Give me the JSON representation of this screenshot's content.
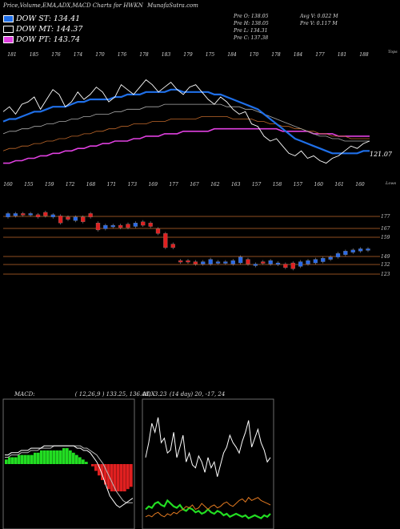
{
  "header": {
    "title": "Price,Volume,EMA,ADX,MACD Charts for HWKN",
    "site": "MunafaSutra.com"
  },
  "legend": [
    {
      "label": "DOW ST: 134.41",
      "color": "#1f6fe8"
    },
    {
      "label": "DOW MT: 144.37",
      "color": "#000000"
    },
    {
      "label": "DOW PT: 143.74",
      "color": "#e040e0"
    }
  ],
  "stats": {
    "o": "Pre   O: 138.05",
    "h": "Pre   H: 138.05",
    "l": "Pre   L: 134.31",
    "c": "Pre   C: 137.38",
    "avgv": "Avg V: 0.022  M",
    "prev": "Pre   V: 0.117 M"
  },
  "chart_data": [
    {
      "type": "line",
      "name": "price-ema-panel",
      "top_label": "Tops",
      "bottom_label": "Lows",
      "last_price_label": "121.07",
      "top_ticks": [
        "181",
        "185",
        "176",
        "174",
        "170",
        "176",
        "178",
        "183",
        "179",
        "175",
        "184",
        "170",
        "178",
        "184",
        "177",
        "181",
        "188"
      ],
      "bottom_ticks": [
        "160",
        "155",
        "159",
        "172",
        "168",
        "171",
        "173",
        "169",
        "177",
        "167",
        "162",
        "163",
        "157",
        "158",
        "157",
        "160",
        "161",
        "160"
      ],
      "series": [
        {
          "name": "price",
          "color": "#ffffff",
          "values": [
            168,
            170,
            167,
            171,
            172,
            174,
            169,
            173,
            177,
            175,
            170,
            172,
            176,
            173,
            175,
            178,
            176,
            172,
            174,
            179,
            177,
            175,
            178,
            181,
            179,
            176,
            178,
            180,
            177,
            175,
            178,
            179,
            176,
            173,
            171,
            174,
            172,
            169,
            167,
            168,
            163,
            162,
            158,
            156,
            157,
            154,
            151,
            150,
            152,
            149,
            150,
            148,
            147,
            149,
            150,
            152,
            154,
            153,
            155,
            156
          ]
        },
        {
          "name": "blue-ema",
          "color": "#1f6fe8",
          "values": [
            164,
            165,
            165,
            166,
            167,
            168,
            168,
            169,
            170,
            170,
            170,
            171,
            172,
            172,
            173,
            173,
            173,
            173,
            174,
            174,
            175,
            175,
            175,
            176,
            176,
            176,
            176,
            177,
            177,
            176,
            176,
            176,
            176,
            176,
            175,
            175,
            174,
            173,
            172,
            171,
            170,
            169,
            167,
            165,
            163,
            161,
            159,
            157,
            156,
            155,
            154,
            153,
            152,
            151,
            151,
            151,
            151,
            151,
            152,
            152
          ]
        },
        {
          "name": "ema-2",
          "color": "#aaaaaa",
          "values": [
            159,
            160,
            160,
            161,
            161,
            162,
            162,
            163,
            163,
            164,
            164,
            165,
            165,
            166,
            166,
            167,
            167,
            167,
            168,
            168,
            169,
            169,
            169,
            170,
            170,
            170,
            171,
            171,
            171,
            171,
            171,
            171,
            171,
            171,
            171,
            171,
            170,
            170,
            170,
            169,
            169,
            168,
            167,
            166,
            165,
            164,
            163,
            162,
            161,
            160,
            159,
            158,
            158,
            157,
            157,
            156,
            156,
            156,
            156,
            156
          ]
        },
        {
          "name": "ema-3",
          "color": "#c0682a",
          "values": [
            152,
            153,
            153,
            154,
            154,
            155,
            155,
            156,
            156,
            157,
            157,
            158,
            158,
            159,
            159,
            160,
            160,
            161,
            161,
            162,
            162,
            163,
            163,
            163,
            164,
            164,
            164,
            165,
            165,
            165,
            165,
            165,
            166,
            166,
            166,
            166,
            166,
            165,
            165,
            165,
            165,
            164,
            164,
            163,
            163,
            162,
            162,
            161,
            161,
            160,
            160,
            159,
            159,
            158,
            158,
            158,
            157,
            157,
            157,
            157
          ]
        },
        {
          "name": "ema-4",
          "color": "#e040e0",
          "values": [
            147,
            147,
            148,
            148,
            149,
            149,
            150,
            150,
            151,
            151,
            152,
            152,
            153,
            153,
            154,
            154,
            155,
            155,
            156,
            156,
            156,
            157,
            157,
            158,
            158,
            158,
            159,
            159,
            159,
            160,
            160,
            160,
            160,
            160,
            161,
            161,
            161,
            161,
            161,
            161,
            161,
            161,
            161,
            161,
            161,
            160,
            160,
            160,
            160,
            160,
            159,
            159,
            159,
            159,
            158,
            158,
            158,
            158,
            158,
            158
          ]
        }
      ]
    },
    {
      "type": "candlestick",
      "name": "price-bars-panel",
      "levels": [
        "177",
        "167",
        "159",
        "149",
        "132",
        "123"
      ],
      "candles": [
        {
          "o": 174,
          "c": 177,
          "up": true
        },
        {
          "o": 175,
          "c": 177,
          "up": true
        },
        {
          "o": 176,
          "c": 177,
          "up": false
        },
        {
          "o": 176,
          "c": 177,
          "up": true
        },
        {
          "o": 176,
          "c": 174,
          "up": false
        },
        {
          "o": 175,
          "c": 178,
          "up": false
        },
        {
          "o": 174,
          "c": 176,
          "up": true
        },
        {
          "o": 175,
          "c": 169,
          "up": false
        },
        {
          "o": 172,
          "c": 174,
          "up": false
        },
        {
          "o": 171,
          "c": 174,
          "up": true
        },
        {
          "o": 170,
          "c": 174,
          "up": false
        },
        {
          "o": 174,
          "c": 177,
          "up": false
        },
        {
          "o": 169,
          "c": 163,
          "up": false
        },
        {
          "o": 164,
          "c": 167,
          "up": true
        },
        {
          "o": 167,
          "c": 167,
          "up": true
        },
        {
          "o": 165,
          "c": 167,
          "up": false
        },
        {
          "o": 168,
          "c": 165,
          "up": false
        },
        {
          "o": 166,
          "c": 169,
          "up": true
        },
        {
          "o": 170,
          "c": 167,
          "up": false
        },
        {
          "o": 166,
          "c": 169,
          "up": false
        },
        {
          "o": 164,
          "c": 160,
          "up": false
        },
        {
          "o": 160,
          "c": 148,
          "up": false
        },
        {
          "o": 151,
          "c": 148,
          "up": false
        },
        {
          "o": 137,
          "c": 136,
          "up": false
        },
        {
          "o": 136,
          "c": 137,
          "up": false
        },
        {
          "o": 136,
          "c": 134,
          "up": false
        },
        {
          "o": 136,
          "c": 134,
          "up": true
        },
        {
          "o": 134,
          "c": 138,
          "up": true
        },
        {
          "o": 135,
          "c": 136,
          "up": true
        },
        {
          "o": 135,
          "c": 136,
          "up": true
        },
        {
          "o": 134,
          "c": 137,
          "up": true
        },
        {
          "o": 135,
          "c": 140,
          "up": true
        },
        {
          "o": 138,
          "c": 134,
          "up": false
        },
        {
          "o": 134,
          "c": 134,
          "up": true
        },
        {
          "o": 135,
          "c": 136,
          "up": false
        },
        {
          "o": 134,
          "c": 137,
          "up": true
        },
        {
          "o": 135,
          "c": 134,
          "up": true
        },
        {
          "o": 131,
          "c": 134,
          "up": false
        },
        {
          "o": 135,
          "c": 130,
          "up": false
        },
        {
          "o": 132,
          "c": 136,
          "up": true
        },
        {
          "o": 134,
          "c": 137,
          "up": true
        },
        {
          "o": 135,
          "c": 138,
          "up": true
        },
        {
          "o": 136,
          "c": 139,
          "up": true
        },
        {
          "o": 138,
          "c": 140,
          "up": true
        },
        {
          "o": 140,
          "c": 143,
          "up": true
        },
        {
          "o": 142,
          "c": 145,
          "up": true
        },
        {
          "o": 144,
          "c": 146,
          "up": true
        },
        {
          "o": 145,
          "c": 147,
          "up": true
        },
        {
          "o": 147,
          "c": 147,
          "up": true
        }
      ]
    },
    {
      "type": "bar",
      "name": "macd-panel",
      "title": "MACD:",
      "params": "( 12,26,9 ) 133.25,  136.48,  -3.23",
      "histogram": [
        2,
        3,
        3,
        3,
        4,
        4,
        4,
        4,
        4,
        5,
        5,
        6,
        6,
        6,
        6,
        6,
        6,
        6,
        7,
        7,
        6,
        5,
        4,
        3,
        2,
        1,
        0,
        -1,
        -3,
        -5,
        -7,
        -9,
        -11,
        -12,
        -12,
        -12,
        -12,
        -12,
        -11,
        -10
      ],
      "macd": [
        4,
        4,
        5,
        5,
        5,
        6,
        6,
        6,
        7,
        7,
        7,
        7,
        8,
        8,
        8,
        8,
        8,
        8,
        8,
        8,
        8,
        8,
        7,
        7,
        6,
        6,
        5,
        3,
        1,
        -2,
        -6,
        -10,
        -14,
        -16,
        -18,
        -19,
        -18,
        -17,
        -16,
        -15
      ],
      "signal": [
        3,
        3,
        4,
        4,
        4,
        5,
        5,
        5,
        6,
        6,
        6,
        7,
        7,
        7,
        7,
        8,
        8,
        8,
        8,
        8,
        8,
        8,
        8,
        8,
        7,
        7,
        6,
        5,
        4,
        2,
        0,
        -3,
        -6,
        -9,
        -12,
        -14,
        -16,
        -17,
        -17,
        -17
      ]
    },
    {
      "type": "line",
      "name": "adx-panel",
      "title": "ADX",
      "params": "(14  day) 20,  -17,  24",
      "series": [
        {
          "name": "dx",
          "color": "#ffffff",
          "values": [
            45,
            55,
            68,
            62,
            72,
            55,
            58,
            48,
            50,
            62,
            45,
            52,
            60,
            42,
            48,
            40,
            38,
            46,
            42,
            35,
            45,
            38,
            42,
            32,
            40,
            48,
            52,
            60,
            55,
            52,
            48,
            56,
            62,
            70,
            52,
            58,
            64,
            55,
            50,
            42,
            45
          ]
        },
        {
          "name": "plus-di",
          "color": "#22dd22",
          "values": [
            10,
            12,
            11,
            14,
            15,
            13,
            12,
            16,
            14,
            12,
            11,
            13,
            10,
            9,
            11,
            10,
            8,
            9,
            7,
            8,
            10,
            8,
            7,
            9,
            8,
            6,
            7,
            5,
            6,
            7,
            6,
            5,
            6,
            4,
            5,
            6,
            5,
            4,
            6,
            5,
            7
          ]
        },
        {
          "name": "minus-di",
          "color": "#e07820",
          "values": [
            5,
            6,
            5,
            7,
            8,
            6,
            5,
            7,
            6,
            8,
            7,
            9,
            10,
            12,
            11,
            13,
            10,
            11,
            14,
            12,
            10,
            12,
            13,
            11,
            12,
            14,
            15,
            13,
            12,
            14,
            16,
            17,
            15,
            18,
            16,
            17,
            18,
            16,
            15,
            14,
            13
          ]
        }
      ]
    }
  ]
}
